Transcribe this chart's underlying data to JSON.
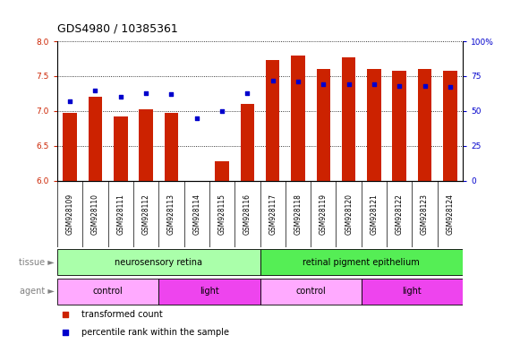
{
  "title": "GDS4980 / 10385361",
  "samples": [
    "GSM928109",
    "GSM928110",
    "GSM928111",
    "GSM928112",
    "GSM928113",
    "GSM928114",
    "GSM928115",
    "GSM928116",
    "GSM928117",
    "GSM928118",
    "GSM928119",
    "GSM928120",
    "GSM928121",
    "GSM928122",
    "GSM928123",
    "GSM928124"
  ],
  "red_values": [
    6.97,
    7.2,
    6.92,
    7.03,
    6.97,
    6.0,
    6.28,
    7.1,
    7.73,
    7.8,
    7.6,
    7.77,
    7.6,
    7.58,
    7.6,
    7.58
  ],
  "blue_values_pct": [
    57,
    65,
    60,
    63,
    62,
    45,
    50,
    63,
    72,
    71,
    69,
    69,
    69,
    68,
    68,
    67
  ],
  "ylim_left": [
    6.0,
    8.0
  ],
  "ylim_right": [
    0,
    100
  ],
  "yticks_left": [
    6.0,
    6.5,
    7.0,
    7.5,
    8.0
  ],
  "yticks_right": [
    0,
    25,
    50,
    75,
    100
  ],
  "ytick_labels_right": [
    "0",
    "25",
    "50",
    "75",
    "100%"
  ],
  "bar_color": "#cc2200",
  "dot_color": "#0000cc",
  "tissue_groups": [
    {
      "label": "neurosensory retina",
      "start": 0,
      "end": 8,
      "color": "#aaffaa"
    },
    {
      "label": "retinal pigment epithelium",
      "start": 8,
      "end": 16,
      "color": "#55ee55"
    }
  ],
  "agent_groups": [
    {
      "label": "control",
      "start": 0,
      "end": 4,
      "color": "#ffaaff"
    },
    {
      "label": "light",
      "start": 4,
      "end": 8,
      "color": "#ee44ee"
    },
    {
      "label": "control",
      "start": 8,
      "end": 12,
      "color": "#ffaaff"
    },
    {
      "label": "light",
      "start": 12,
      "end": 16,
      "color": "#ee44ee"
    }
  ],
  "legend_items": [
    {
      "label": "transformed count",
      "color": "#cc2200"
    },
    {
      "label": "percentile rank within the sample",
      "color": "#0000cc"
    }
  ],
  "bg_color": "#ffffff",
  "tick_label_size": 6.5,
  "title_size": 9,
  "bar_width": 0.55
}
